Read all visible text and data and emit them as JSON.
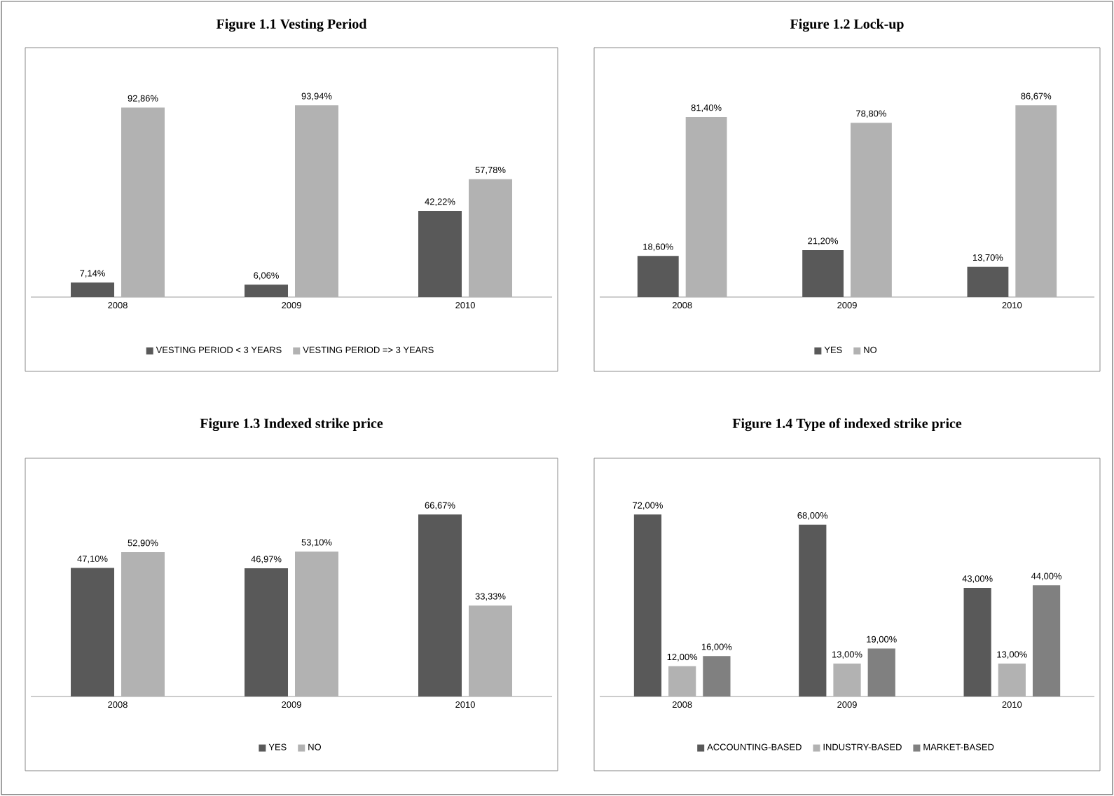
{
  "chart_data": [
    {
      "type": "bar",
      "title": "Figure 1.1 Vesting Period",
      "categories": [
        "2008",
        "2009",
        "2010"
      ],
      "legend": "bottom",
      "series": [
        {
          "name": "VESTING PERIOD < 3 YEARS",
          "color": "#595959",
          "values": [
            7.14,
            6.06,
            42.22
          ],
          "value_labels": [
            "7,14%",
            "6,06%",
            "42,22%"
          ]
        },
        {
          "name": "VESTING PERIOD => 3 YEARS",
          "color": "#b2b2b2",
          "values": [
            92.86,
            93.94,
            57.78
          ],
          "value_labels": [
            "92,86%",
            "93,94%",
            "57,78%"
          ]
        }
      ]
    },
    {
      "type": "bar",
      "title": "Figure 1.2 Lock-up",
      "categories": [
        "2008",
        "2009",
        "2010"
      ],
      "legend": "bottom",
      "series": [
        {
          "name": "YES",
          "color": "#595959",
          "values": [
            18.6,
            21.2,
            13.7
          ],
          "value_labels": [
            "18,60%",
            "21,20%",
            "13,70%"
          ]
        },
        {
          "name": "NO",
          "color": "#b2b2b2",
          "values": [
            81.4,
            78.8,
            86.67
          ],
          "value_labels": [
            "81,40%",
            "78,80%",
            "86,67%"
          ]
        }
      ]
    },
    {
      "type": "bar",
      "title": "Figure 1.3 Indexed strike price",
      "categories": [
        "2008",
        "2009",
        "2010"
      ],
      "legend": "bottom",
      "series": [
        {
          "name": "YES",
          "color": "#595959",
          "values": [
            47.1,
            46.97,
            66.67
          ],
          "value_labels": [
            "47,10%",
            "46,97%",
            "66,67%"
          ]
        },
        {
          "name": "NO",
          "color": "#b2b2b2",
          "values": [
            52.9,
            53.1,
            33.33
          ],
          "value_labels": [
            "52,90%",
            "53,10%",
            "33,33%"
          ]
        }
      ]
    },
    {
      "type": "bar",
      "title": "Figure 1.4 Type of indexed strike price",
      "categories": [
        "2008",
        "2009",
        "2010"
      ],
      "legend": "bottom",
      "series": [
        {
          "name": "ACCOUNTING-BASED",
          "color": "#595959",
          "values": [
            72,
            68,
            43
          ],
          "value_labels": [
            "72,00%",
            "68,00%",
            "43,00%"
          ]
        },
        {
          "name": "INDUSTRY-BASED",
          "color": "#b2b2b2",
          "values": [
            12,
            13,
            13
          ],
          "value_labels": [
            "12,00%",
            "13,00%",
            "13,00%"
          ]
        },
        {
          "name": "MARKET-BASED",
          "color": "#808080",
          "values": [
            16,
            19,
            44
          ],
          "value_labels": [
            "16,00%",
            "19,00%",
            "44,00%"
          ]
        }
      ]
    }
  ]
}
